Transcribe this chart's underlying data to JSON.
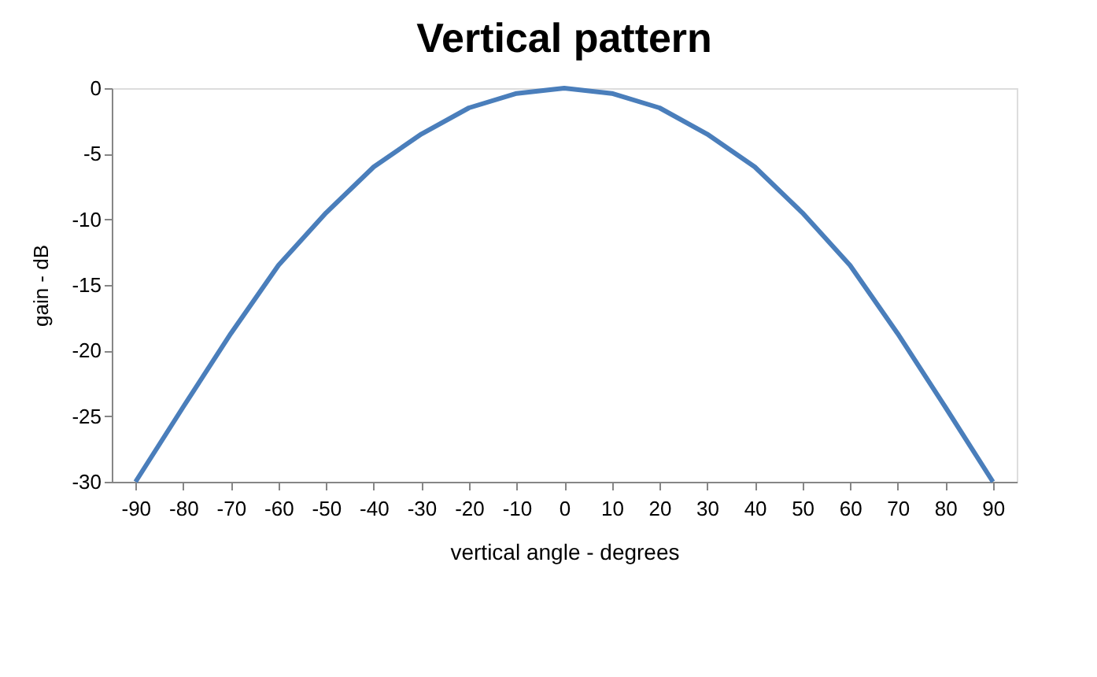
{
  "chart_data": {
    "type": "line",
    "title": "Vertical pattern",
    "xlabel": "vertical angle - degrees",
    "ylabel": "gain - dB",
    "categories": [
      "-90",
      "-80",
      "-70",
      "-60",
      "-50",
      "-40",
      "-30",
      "-20",
      "-10",
      "0",
      "10",
      "20",
      "30",
      "40",
      "50",
      "60",
      "70",
      "80",
      "90"
    ],
    "series": [
      {
        "color": "#4a7ebb",
        "values": [
          -30,
          -24.3,
          -18.7,
          -13.5,
          -9.5,
          -6,
          -3.5,
          -1.5,
          -0.4,
          0,
          -0.4,
          -1.5,
          -3.5,
          -6,
          -9.5,
          -13.5,
          -18.7,
          -24.3,
          -30
        ]
      }
    ],
    "ylim": [
      -30,
      0
    ],
    "yticks": [
      -30,
      -25,
      -20,
      -15,
      -10,
      -5,
      0
    ],
    "grid": false,
    "legend": false,
    "marker": "none",
    "line_style": "solid"
  }
}
